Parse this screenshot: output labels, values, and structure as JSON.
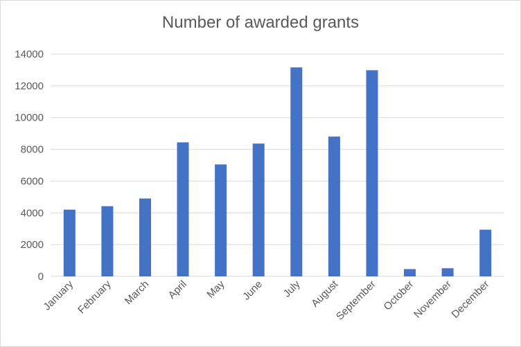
{
  "chart_data": {
    "type": "bar",
    "title": "Number of awarded grants",
    "categories": [
      "January",
      "February",
      "March",
      "April",
      "May",
      "June",
      "July",
      "August",
      "September",
      "October",
      "November",
      "December"
    ],
    "values": [
      4200,
      4420,
      4900,
      8440,
      7050,
      8360,
      13160,
      8800,
      12980,
      460,
      510,
      2940
    ],
    "ylim": [
      0,
      14000
    ],
    "yticks": [
      0,
      2000,
      4000,
      6000,
      8000,
      10000,
      12000,
      14000
    ],
    "grid": true,
    "legend": "none",
    "colors": {
      "bar": "#4472c4",
      "grid": "#d9d9d9",
      "text": "#595959"
    }
  }
}
